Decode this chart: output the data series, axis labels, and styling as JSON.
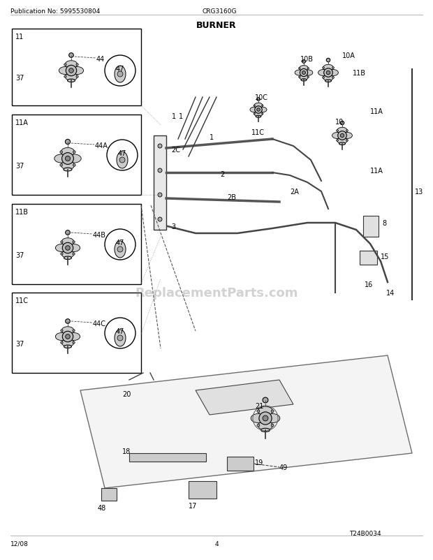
{
  "title": "BURNER",
  "pub_no": "Publication No: 5995530804",
  "model": "CRG3160G",
  "date": "12/08",
  "page": "4",
  "diagram_ref": "T24B0034",
  "watermark": "ReplacementParts.com",
  "bg_color": "#ffffff",
  "border_color": "#000000",
  "line_color": "#333333",
  "part_labels": {
    "top_boxes": [
      {
        "label": "11",
        "sublabel": "44",
        "extra": "47",
        "side": "37"
      },
      {
        "label": "11A",
        "sublabel": "44A",
        "extra": "47",
        "side": "37"
      },
      {
        "label": "11B",
        "sublabel": "44B",
        "extra": "47",
        "side": "37"
      },
      {
        "label": "11C",
        "sublabel": "44C",
        "extra": "47",
        "side": "37"
      }
    ]
  }
}
